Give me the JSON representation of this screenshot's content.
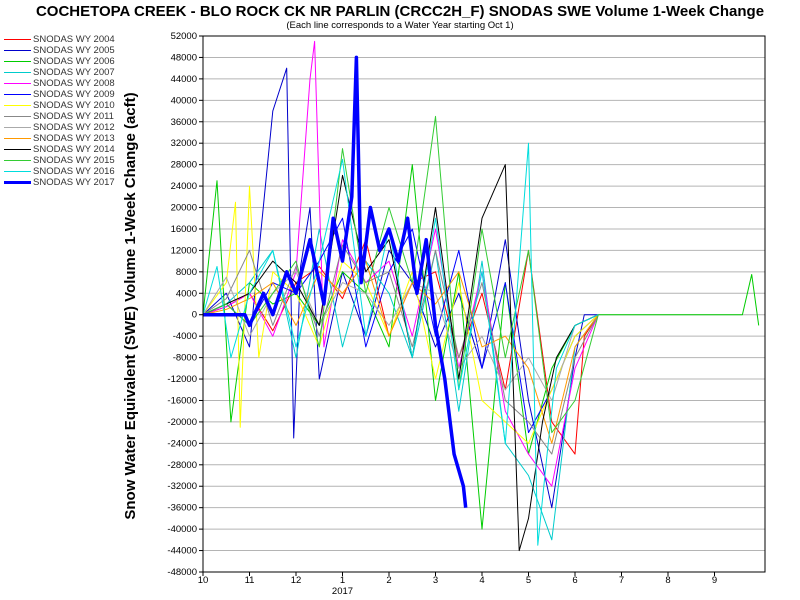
{
  "chart_data": {
    "type": "line",
    "title": "COCHETOPA CREEK - BLO ROCK CK NR PARLIN (CRCC2H_F) SNODAS SWE Volume 1-Week Change",
    "subtitle": "(Each line corresponds to a Water Year starting Oct 1)",
    "ylabel": "Snow Water Equivalent (SWE) Volume 1-Week Change (acft)",
    "xlabel": "",
    "ylim": [
      -48000,
      52000
    ],
    "yticks": [
      "52000",
      "48000",
      "44000",
      "40000",
      "36000",
      "32000",
      "28000",
      "24000",
      "20000",
      "16000",
      "12000",
      "8000",
      "4000",
      "0",
      "-4000",
      "-8000",
      "-12000",
      "-16000",
      "-20000",
      "-24000",
      "-28000",
      "-32000",
      "-36000",
      "-40000",
      "-44000",
      "-48000"
    ],
    "x_tick_labels": [
      "10",
      "11",
      "12",
      "1",
      "2",
      "3",
      "4",
      "5",
      "6",
      "7",
      "8",
      "9"
    ],
    "x_year_label": "2017",
    "grid": true,
    "legend_position": "left",
    "series": [
      {
        "name": "SNODAS WY 2004",
        "color": "#ff0000",
        "x": [
          10.0,
          10.5,
          11.0,
          11.5,
          12.0,
          12.5,
          1.0,
          1.5,
          2.0,
          2.5,
          3.0,
          3.5,
          4.0,
          4.5,
          5.0,
          5.5,
          6.0,
          6.2,
          6.5
        ],
        "values": [
          0,
          1500,
          4000,
          -3000,
          6000,
          9000,
          3000,
          14000,
          -4000,
          6000,
          8000,
          -8000,
          4000,
          -14000,
          12000,
          -20000,
          -26000,
          -4000,
          0
        ]
      },
      {
        "name": "SNODAS WY 2005",
        "color": "#0000cc",
        "x": [
          10.0,
          10.5,
          11.0,
          11.5,
          11.8,
          11.95,
          12.1,
          12.3,
          12.5,
          1.0,
          1.5,
          2.0,
          2.5,
          3.0,
          3.5,
          4.0,
          4.5,
          5.0,
          5.5,
          6.0,
          6.2,
          6.5
        ],
        "values": [
          0,
          4000,
          -6000,
          38000,
          46000,
          -23000,
          9000,
          20000,
          -12000,
          8000,
          -4000,
          12000,
          6000,
          -6000,
          4000,
          -10000,
          14000,
          -16000,
          -36000,
          -8000,
          0,
          0
        ]
      },
      {
        "name": "SNODAS WY 2006",
        "color": "#00cc00",
        "x": [
          10.0,
          10.3,
          10.6,
          11.0,
          11.5,
          12.0,
          12.5,
          1.0,
          1.5,
          2.0,
          2.5,
          3.0,
          3.5,
          4.0,
          4.5,
          5.0,
          5.5,
          6.0,
          6.5,
          9.6,
          9.8,
          9.95
        ],
        "values": [
          0,
          25000,
          -20000,
          6000,
          2000,
          4000,
          -2000,
          8000,
          4000,
          -6000,
          28000,
          -16000,
          8000,
          -40000,
          6000,
          -26000,
          -10000,
          -2000,
          0,
          0,
          7500,
          -2000
        ]
      },
      {
        "name": "SNODAS WY 2007",
        "color": "#00cccc",
        "x": [
          10.0,
          10.5,
          11.0,
          11.5,
          12.0,
          12.5,
          1.0,
          1.5,
          2.0,
          2.5,
          3.0,
          3.5,
          4.0,
          4.5,
          5.0,
          5.5,
          6.0,
          6.5
        ],
        "values": [
          0,
          2000,
          6000,
          12000,
          -8000,
          16000,
          -6000,
          10000,
          4000,
          -8000,
          12000,
          -18000,
          10000,
          -24000,
          -30000,
          -42000,
          -6000,
          0
        ]
      },
      {
        "name": "SNODAS WY 2008",
        "color": "#ff00ff",
        "x": [
          10.0,
          10.5,
          11.0,
          11.5,
          12.0,
          12.3,
          12.4,
          12.6,
          1.0,
          1.5,
          2.0,
          2.5,
          3.0,
          3.5,
          4.0,
          4.5,
          5.0,
          5.5,
          6.0,
          6.5
        ],
        "values": [
          0,
          1500,
          4000,
          -4000,
          8000,
          44000,
          51000,
          -6000,
          14000,
          6000,
          10000,
          -4000,
          16000,
          -10000,
          8000,
          -18000,
          -26000,
          -32000,
          -10000,
          0
        ]
      },
      {
        "name": "SNODAS WY 2009",
        "color": "#0000ff",
        "x": [
          10.0,
          10.5,
          11.0,
          11.5,
          12.0,
          12.5,
          1.0,
          1.5,
          2.0,
          2.5,
          3.0,
          3.5,
          4.0,
          4.5,
          5.0,
          5.5,
          6.0,
          6.5
        ],
        "values": [
          0,
          2000,
          -2000,
          6000,
          4000,
          10000,
          18000,
          -6000,
          8000,
          16000,
          -4000,
          12000,
          -10000,
          6000,
          -22000,
          -14000,
          -4000,
          0
        ]
      },
      {
        "name": "SNODAS WY 2010",
        "color": "#ffff00",
        "x": [
          10.0,
          10.5,
          10.7,
          10.8,
          11.0,
          11.2,
          11.5,
          12.0,
          12.5,
          1.0,
          1.5,
          2.0,
          2.5,
          3.0,
          3.5,
          4.0,
          4.5,
          5.0,
          5.5,
          6.0,
          6.5
        ],
        "values": [
          0,
          6000,
          21000,
          -21000,
          24000,
          -8000,
          8000,
          4000,
          -6000,
          10000,
          6000,
          -4000,
          8000,
          -12000,
          6000,
          -16000,
          -20000,
          -24000,
          -14000,
          -4000,
          0
        ]
      },
      {
        "name": "SNODAS WY 2011",
        "color": "#888888",
        "x": [
          10.0,
          10.5,
          11.0,
          11.5,
          12.0,
          12.5,
          1.0,
          1.5,
          2.0,
          2.5,
          3.0,
          3.5,
          4.0,
          4.5,
          5.0,
          5.5,
          6.0,
          6.5
        ],
        "values": [
          0,
          3000,
          12000,
          -2000,
          9000,
          -4000,
          13000,
          6000,
          8000,
          -6000,
          12000,
          -8000,
          6000,
          -16000,
          -20000,
          -26000,
          -8000,
          0
        ]
      },
      {
        "name": "SNODAS WY 2012",
        "color": "#aaaaaa",
        "x": [
          10.0,
          10.5,
          11.0,
          11.5,
          12.0,
          12.5,
          1.0,
          1.5,
          2.0,
          2.5,
          3.0,
          3.5,
          4.0,
          4.5,
          5.0,
          5.5,
          6.0,
          6.5
        ],
        "values": [
          0,
          7000,
          -4000,
          4000,
          8000,
          -2000,
          6000,
          4000,
          -2000,
          6000,
          4000,
          -10000,
          -4000,
          -14000,
          -8000,
          -16000,
          -2000,
          0
        ]
      },
      {
        "name": "SNODAS WY 2013",
        "color": "#ff9900",
        "x": [
          10.0,
          10.5,
          11.0,
          11.5,
          12.0,
          12.5,
          1.0,
          1.5,
          2.0,
          2.5,
          3.0,
          3.5,
          4.0,
          4.5,
          5.0,
          5.5,
          6.0,
          6.5
        ],
        "values": [
          0,
          1000,
          3000,
          6000,
          -2000,
          8000,
          4000,
          10000,
          -4000,
          6000,
          2000,
          8000,
          -6000,
          -4000,
          -10000,
          -24000,
          -6000,
          0
        ]
      },
      {
        "name": "SNODAS WY 2014",
        "color": "#000000",
        "x": [
          10.0,
          10.5,
          11.0,
          11.5,
          12.0,
          12.5,
          1.0,
          1.5,
          2.0,
          2.5,
          3.0,
          3.5,
          4.0,
          4.5,
          4.8,
          5.0,
          5.3,
          5.6,
          6.0,
          6.5
        ],
        "values": [
          0,
          2000,
          4000,
          10000,
          6000,
          -2000,
          26000,
          8000,
          14000,
          -8000,
          20000,
          -12000,
          18000,
          28000,
          -44000,
          -38000,
          -20000,
          -8000,
          -2000,
          0
        ]
      },
      {
        "name": "SNODAS WY 2015",
        "color": "#33cc33",
        "x": [
          10.0,
          10.5,
          11.0,
          11.5,
          12.0,
          12.5,
          1.0,
          1.5,
          2.0,
          2.5,
          3.0,
          3.5,
          4.0,
          4.5,
          5.0,
          5.5,
          6.0,
          6.5
        ],
        "values": [
          0,
          2000,
          -2000,
          4000,
          10000,
          -6000,
          31000,
          4000,
          20000,
          6000,
          37000,
          -14000,
          16000,
          -8000,
          12000,
          -22000,
          -16000,
          0
        ]
      },
      {
        "name": "SNODAS WY 2016",
        "color": "#00dddd",
        "x": [
          10.0,
          10.3,
          10.6,
          11.0,
          11.5,
          12.0,
          12.5,
          1.0,
          1.5,
          2.0,
          2.5,
          3.0,
          3.5,
          4.0,
          4.5,
          5.0,
          5.2,
          5.4,
          5.6,
          6.0,
          6.5
        ],
        "values": [
          0,
          9000,
          -8000,
          4000,
          12000,
          -6000,
          10000,
          29000,
          -4000,
          16000,
          -8000,
          18000,
          -14000,
          8000,
          -24000,
          32000,
          -43000,
          -26000,
          -10000,
          -2000,
          0
        ]
      },
      {
        "name": "SNODAS WY 2017",
        "color": "#0000ff",
        "bold": true,
        "x": [
          10.0,
          10.5,
          10.9,
          11.0,
          11.3,
          11.5,
          11.8,
          12.0,
          12.3,
          12.6,
          12.8,
          1.0,
          1.2,
          1.3,
          1.4,
          1.6,
          1.8,
          2.0,
          2.2,
          2.4,
          2.6,
          2.8,
          3.0,
          3.2,
          3.4,
          3.6,
          3.65
        ],
        "values": [
          0,
          0,
          0,
          -2000,
          4000,
          0,
          8000,
          4000,
          14000,
          2000,
          18000,
          10000,
          22000,
          48000,
          6000,
          20000,
          12000,
          16000,
          10000,
          18000,
          4000,
          14000,
          -2000,
          -12000,
          -26000,
          -32000,
          -36000
        ]
      }
    ]
  }
}
